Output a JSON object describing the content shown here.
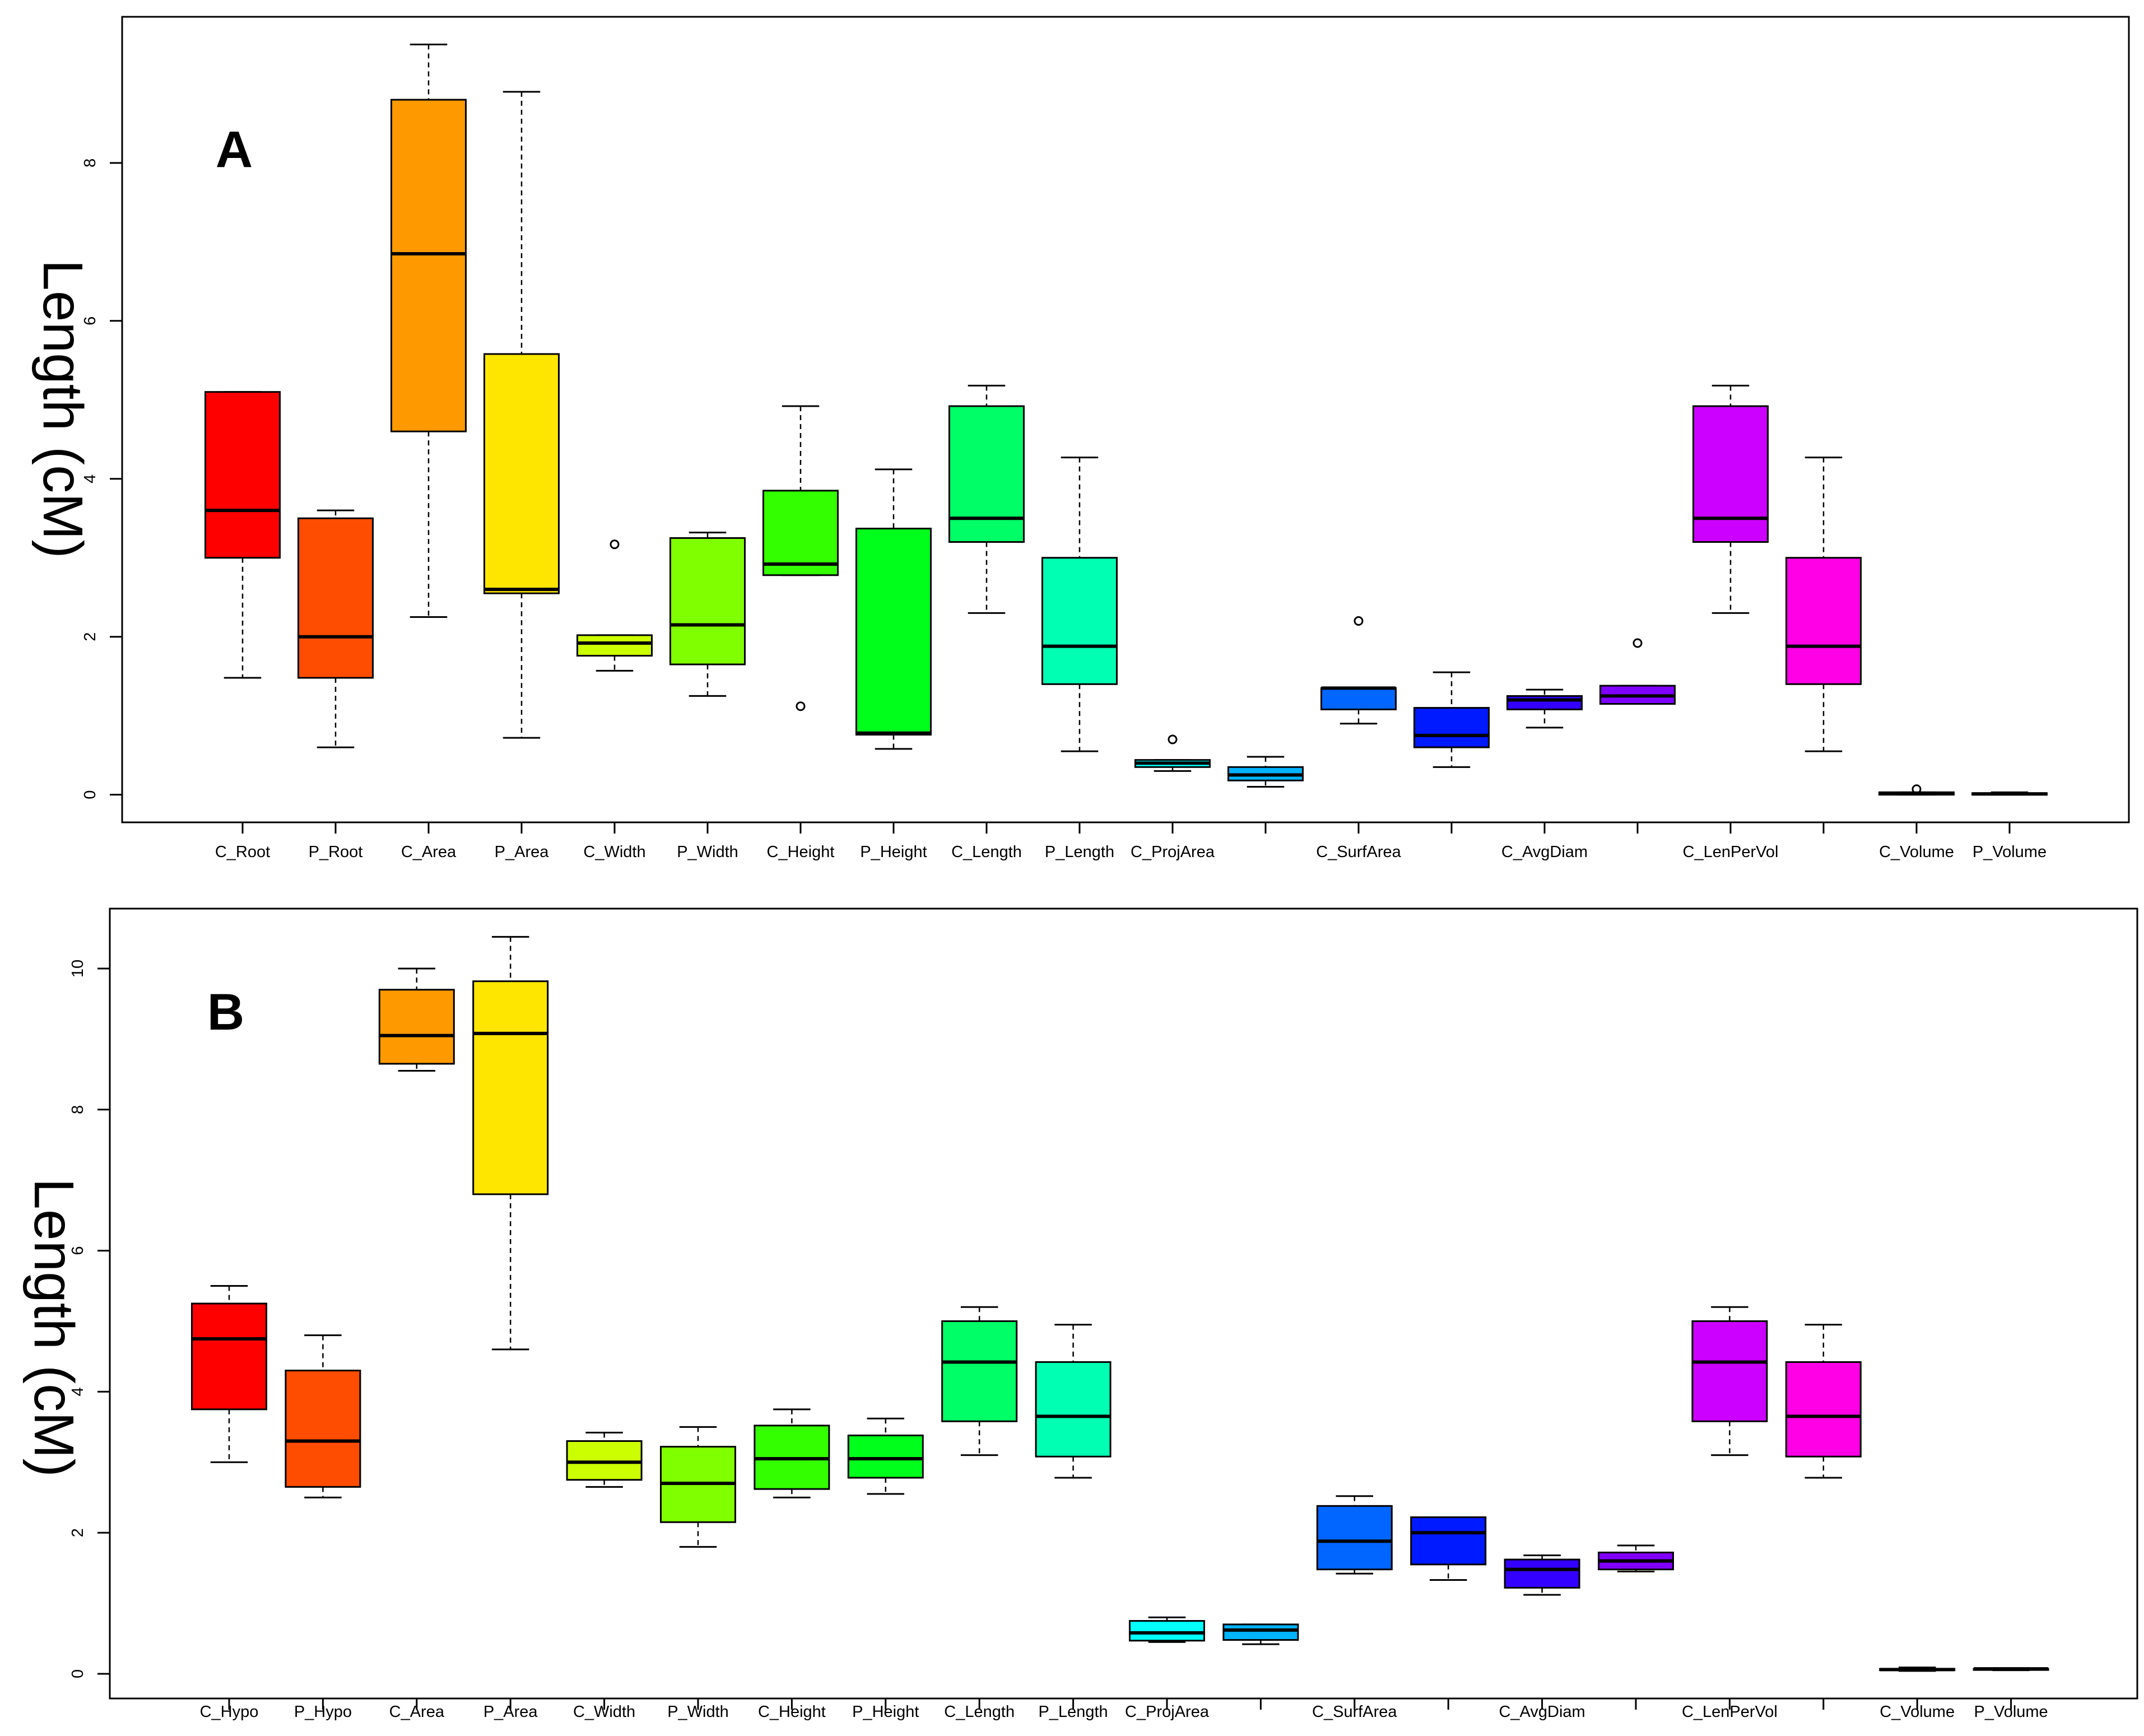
{
  "chart_data": [
    {
      "type": "box",
      "panel_label": "A",
      "ylabel": "Length (cM)",
      "ylim": [
        -0.35,
        9.85
      ],
      "yticks": [
        0,
        2,
        4,
        6,
        8
      ],
      "categories": [
        "C_Root",
        "P_Root",
        "C_Area",
        "P_Area",
        "C_Width",
        "P_Width",
        "C_Height",
        "P_Height",
        "C_Length",
        "P_Length",
        "C_ProjArea",
        "",
        "C_SurfArea",
        "",
        "C_AvgDiam",
        "",
        "C_LenPerVol",
        "",
        "C_Volume",
        "P_Volume"
      ],
      "boxes": [
        {
          "min": 1.48,
          "q1": 3.0,
          "median": 3.6,
          "q3": 5.1,
          "max": 5.1,
          "color": "#ff0000",
          "outliers": []
        },
        {
          "min": 0.6,
          "q1": 1.48,
          "median": 2.0,
          "q3": 3.5,
          "max": 3.6,
          "color": "#ff4d00",
          "outliers": []
        },
        {
          "min": 2.25,
          "q1": 4.6,
          "median": 6.85,
          "q3": 8.8,
          "max": 9.5,
          "color": "#ff9900",
          "outliers": []
        },
        {
          "min": 0.72,
          "q1": 2.55,
          "median": 2.6,
          "q3": 5.58,
          "max": 8.9,
          "color": "#ffe600",
          "outliers": []
        },
        {
          "min": 1.57,
          "q1": 1.76,
          "median": 1.92,
          "q3": 2.02,
          "max": 2.02,
          "color": "#ccff00",
          "outliers": [
            3.17
          ]
        },
        {
          "min": 1.25,
          "q1": 1.65,
          "median": 2.15,
          "q3": 3.25,
          "max": 3.32,
          "color": "#80ff00",
          "outliers": []
        },
        {
          "min": 2.78,
          "q1": 2.78,
          "median": 2.92,
          "q3": 3.85,
          "max": 4.92,
          "color": "#33ff00",
          "outliers": [
            1.12
          ]
        },
        {
          "min": 0.58,
          "q1": 0.76,
          "median": 0.78,
          "q3": 3.37,
          "max": 4.12,
          "color": "#00ff1a",
          "outliers": []
        },
        {
          "min": 2.3,
          "q1": 3.2,
          "median": 3.5,
          "q3": 4.92,
          "max": 5.18,
          "color": "#00ff66",
          "outliers": []
        },
        {
          "min": 0.55,
          "q1": 1.4,
          "median": 1.88,
          "q3": 3.0,
          "max": 4.27,
          "color": "#00ffb3",
          "outliers": []
        },
        {
          "min": 0.3,
          "q1": 0.35,
          "median": 0.4,
          "q3": 0.44,
          "max": 0.44,
          "color": "#00ffff",
          "outliers": [
            0.7
          ]
        },
        {
          "min": 0.1,
          "q1": 0.18,
          "median": 0.25,
          "q3": 0.35,
          "max": 0.48,
          "color": "#00b3ff",
          "outliers": []
        },
        {
          "min": 0.9,
          "q1": 1.08,
          "median": 1.35,
          "q3": 1.35,
          "max": 1.35,
          "color": "#0066ff",
          "outliers": [
            2.2
          ]
        },
        {
          "min": 0.35,
          "q1": 0.6,
          "median": 0.75,
          "q3": 1.1,
          "max": 1.55,
          "color": "#001aff",
          "outliers": []
        },
        {
          "min": 0.85,
          "q1": 1.08,
          "median": 1.2,
          "q3": 1.25,
          "max": 1.33,
          "color": "#3300ff",
          "outliers": []
        },
        {
          "min": 1.15,
          "q1": 1.15,
          "median": 1.25,
          "q3": 1.38,
          "max": 1.38,
          "color": "#8000ff",
          "outliers": [
            1.92
          ]
        },
        {
          "min": 2.3,
          "q1": 3.2,
          "median": 3.5,
          "q3": 4.92,
          "max": 5.18,
          "color": "#cc00ff",
          "outliers": []
        },
        {
          "min": 0.55,
          "q1": 1.4,
          "median": 1.88,
          "q3": 3.0,
          "max": 4.27,
          "color": "#ff00e6",
          "outliers": []
        },
        {
          "min": 0.0,
          "q1": 0.0,
          "median": 0.02,
          "q3": 0.03,
          "max": 0.03,
          "color": "#ff0099",
          "outliers": [
            0.07
          ]
        },
        {
          "min": 0.0,
          "q1": 0.0,
          "median": 0.01,
          "q3": 0.02,
          "max": 0.03,
          "color": "#ff004d",
          "outliers": []
        }
      ]
    },
    {
      "type": "box",
      "panel_label": "B",
      "ylabel": "Length (cM)",
      "ylim": [
        -0.35,
        10.85
      ],
      "yticks": [
        0,
        2,
        4,
        6,
        8,
        10
      ],
      "categories": [
        "C_Hypo",
        "P_Hypo",
        "C_Area",
        "P_Area",
        "C_Width",
        "P_Width",
        "C_Height",
        "P_Height",
        "C_Length",
        "P_Length",
        "C_ProjArea",
        "",
        "C_SurfArea",
        "",
        "C_AvgDiam",
        "",
        "C_LenPerVol",
        "",
        "C_Volume",
        "P_Volume"
      ],
      "boxes": [
        {
          "min": 3.0,
          "q1": 3.75,
          "median": 4.75,
          "q3": 5.25,
          "max": 5.5,
          "color": "#ff0000",
          "outliers": []
        },
        {
          "min": 2.5,
          "q1": 2.65,
          "median": 3.3,
          "q3": 4.3,
          "max": 4.8,
          "color": "#ff4d00",
          "outliers": []
        },
        {
          "min": 8.55,
          "q1": 8.65,
          "median": 9.05,
          "q3": 9.7,
          "max": 10.0,
          "color": "#ff9900",
          "outliers": []
        },
        {
          "min": 4.6,
          "q1": 6.8,
          "median": 9.08,
          "q3": 9.82,
          "max": 10.45,
          "color": "#ffe600",
          "outliers": []
        },
        {
          "min": 2.65,
          "q1": 2.75,
          "median": 3.0,
          "q3": 3.3,
          "max": 3.42,
          "color": "#ccff00",
          "outliers": []
        },
        {
          "min": 1.8,
          "q1": 2.15,
          "median": 2.7,
          "q3": 3.22,
          "max": 3.5,
          "color": "#80ff00",
          "outliers": []
        },
        {
          "min": 2.5,
          "q1": 2.62,
          "median": 3.05,
          "q3": 3.52,
          "max": 3.75,
          "color": "#33ff00",
          "outliers": []
        },
        {
          "min": 2.55,
          "q1": 2.78,
          "median": 3.05,
          "q3": 3.38,
          "max": 3.62,
          "color": "#00ff1a",
          "outliers": []
        },
        {
          "min": 3.1,
          "q1": 3.58,
          "median": 4.42,
          "q3": 5.0,
          "max": 5.2,
          "color": "#00ff66",
          "outliers": []
        },
        {
          "min": 2.78,
          "q1": 3.08,
          "median": 3.65,
          "q3": 4.42,
          "max": 4.95,
          "color": "#00ffb3",
          "outliers": []
        },
        {
          "min": 0.45,
          "q1": 0.47,
          "median": 0.58,
          "q3": 0.75,
          "max": 0.8,
          "color": "#00ffff",
          "outliers": []
        },
        {
          "min": 0.42,
          "q1": 0.48,
          "median": 0.62,
          "q3": 0.7,
          "max": 0.7,
          "color": "#00b3ff",
          "outliers": []
        },
        {
          "min": 1.42,
          "q1": 1.48,
          "median": 1.88,
          "q3": 2.38,
          "max": 2.52,
          "color": "#0066ff",
          "outliers": []
        },
        {
          "min": 1.33,
          "q1": 1.55,
          "median": 2.0,
          "q3": 2.22,
          "max": 2.22,
          "color": "#001aff",
          "outliers": []
        },
        {
          "min": 1.12,
          "q1": 1.22,
          "median": 1.48,
          "q3": 1.62,
          "max": 1.68,
          "color": "#3300ff",
          "outliers": []
        },
        {
          "min": 1.45,
          "q1": 1.48,
          "median": 1.6,
          "q3": 1.72,
          "max": 1.82,
          "color": "#8000ff",
          "outliers": []
        },
        {
          "min": 3.1,
          "q1": 3.58,
          "median": 4.42,
          "q3": 5.0,
          "max": 5.2,
          "color": "#cc00ff",
          "outliers": []
        },
        {
          "min": 2.78,
          "q1": 3.08,
          "median": 3.65,
          "q3": 4.42,
          "max": 4.95,
          "color": "#ff00e6",
          "outliers": []
        },
        {
          "min": 0.04,
          "q1": 0.05,
          "median": 0.06,
          "q3": 0.07,
          "max": 0.09,
          "color": "#ff0099",
          "outliers": []
        },
        {
          "min": 0.05,
          "q1": 0.06,
          "median": 0.07,
          "q3": 0.07,
          "max": 0.08,
          "color": "#ff004d",
          "outliers": []
        }
      ]
    }
  ]
}
